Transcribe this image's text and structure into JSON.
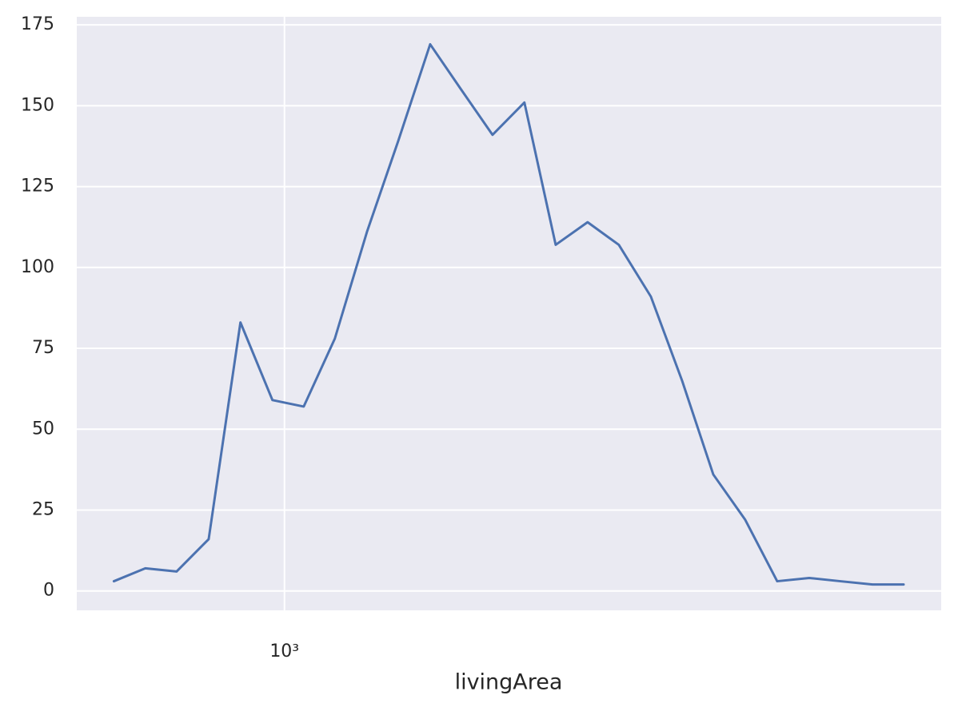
{
  "chart_data": {
    "type": "line",
    "x_label": "livingArea",
    "xscale": "log",
    "grid": true,
    "x": [
      612,
      670,
      733,
      804,
      881,
      966,
      1057,
      1156,
      1268,
      1387,
      1521,
      1663,
      1820,
      1995,
      2183,
      2393,
      2618,
      2871,
      3141,
      3436,
      3767,
      4130,
      4529,
      4955,
      5433,
      5943
    ],
    "series": [
      {
        "color": "#4c72b0",
        "values": [
          3,
          7,
          6,
          16,
          83,
          59,
          57,
          78,
          111,
          139,
          169,
          155,
          141,
          151,
          107,
          114,
          107,
          91,
          65,
          36,
          22,
          3,
          4,
          3,
          2,
          2
        ]
      }
    ],
    "xlim": [
      550,
      6622
    ],
    "xticks": [
      {
        "value": 1000,
        "label": "10³"
      }
    ],
    "ylim": [
      -6,
      177.5
    ],
    "yticks": [
      0,
      25,
      50,
      75,
      100,
      125,
      150,
      175
    ]
  }
}
